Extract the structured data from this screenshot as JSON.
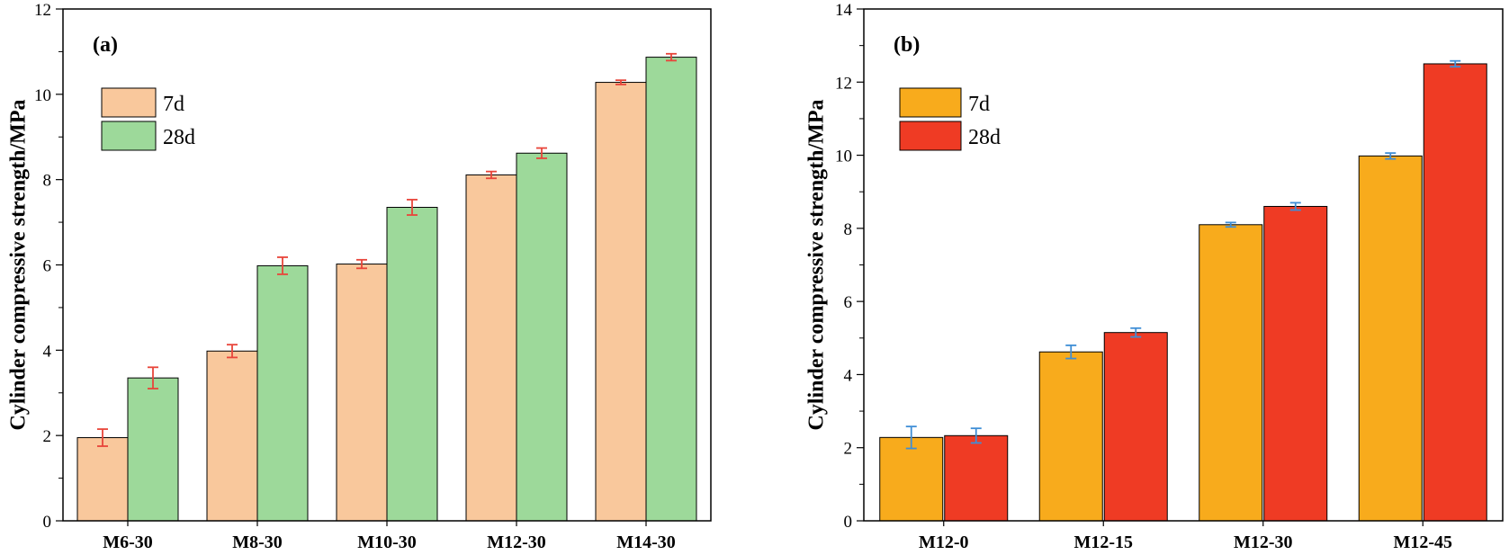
{
  "chart_data": [
    {
      "type": "bar",
      "panel_label": "(a)",
      "ylabel": "Cylinder compressive strength/MPa",
      "xlabel": "",
      "ylim": [
        0,
        12
      ],
      "yticks": [
        "0",
        "2",
        "4",
        "6",
        "8",
        "10",
        "12"
      ],
      "grid": false,
      "legend_position": "top-left",
      "categories": [
        "M6-30",
        "M8-30",
        "M10-30",
        "M12-30",
        "M14-30"
      ],
      "series": [
        {
          "name": "7d",
          "color": "#f9c89c",
          "values": [
            1.95,
            3.98,
            6.02,
            8.11,
            10.28
          ],
          "errors": [
            0.2,
            0.15,
            0.1,
            0.08,
            0.05
          ]
        },
        {
          "name": "28d",
          "color": "#9dd99a",
          "values": [
            3.35,
            5.98,
            7.35,
            8.62,
            10.87
          ],
          "errors": [
            0.25,
            0.2,
            0.18,
            0.12,
            0.08
          ]
        }
      ],
      "error_bar_color": "#e8453a"
    },
    {
      "type": "bar",
      "panel_label": "(b)",
      "ylabel": "Cylinder compressive strength/MPa",
      "xlabel": "",
      "ylim": [
        0,
        14
      ],
      "yticks": [
        "0",
        "2",
        "4",
        "6",
        "8",
        "10",
        "12",
        "14"
      ],
      "grid": false,
      "legend_position": "top-left",
      "categories": [
        "M12-0",
        "M12-15",
        "M12-30",
        "M12-45"
      ],
      "series": [
        {
          "name": "7d",
          "color": "#f8ab1c",
          "values": [
            2.28,
            4.62,
            8.1,
            9.98
          ],
          "errors": [
            0.3,
            0.18,
            0.06,
            0.08
          ]
        },
        {
          "name": "28d",
          "color": "#ef3b24",
          "values": [
            2.33,
            5.15,
            8.6,
            12.5
          ],
          "errors": [
            0.2,
            0.12,
            0.1,
            0.08
          ]
        }
      ],
      "error_bar_color": "#3f8ed6"
    }
  ]
}
